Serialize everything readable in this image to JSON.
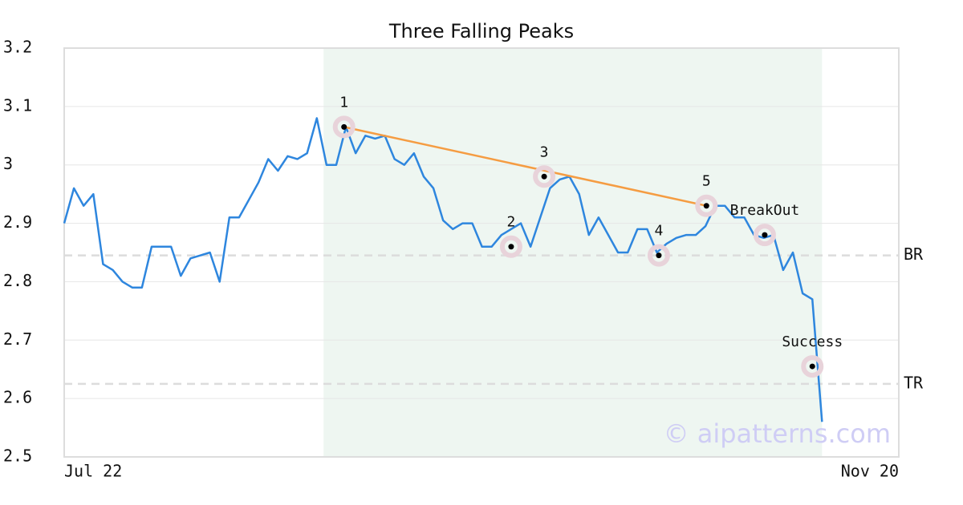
{
  "chart_data": {
    "type": "line",
    "title": "Three Falling Peaks",
    "x": [
      0,
      1,
      2,
      3,
      4,
      5,
      6,
      7,
      8,
      9,
      10,
      11,
      12,
      13,
      14,
      15,
      16,
      17,
      18,
      19,
      20,
      21,
      22,
      23,
      24,
      25,
      26,
      27,
      28,
      29,
      30,
      31,
      32,
      33,
      34,
      35,
      36,
      37,
      38,
      39,
      40,
      41,
      42,
      43,
      44,
      45,
      46,
      47,
      48,
      49,
      50,
      51,
      52,
      53,
      54,
      55,
      56,
      57,
      58,
      59,
      60,
      61,
      62,
      63,
      64,
      65,
      66,
      67,
      68,
      69,
      70,
      71,
      72,
      73,
      74,
      75,
      76,
      77,
      78
    ],
    "values": [
      2.9,
      2.96,
      2.93,
      2.95,
      2.83,
      2.82,
      2.8,
      2.79,
      2.79,
      2.86,
      2.86,
      2.86,
      2.81,
      2.84,
      2.845,
      2.85,
      2.8,
      2.91,
      2.91,
      2.94,
      2.97,
      3.01,
      2.99,
      3.015,
      3.01,
      3.02,
      3.08,
      3.0,
      3.0,
      3.065,
      3.02,
      3.05,
      3.045,
      3.05,
      3.01,
      3.0,
      3.02,
      2.98,
      2.96,
      2.905,
      2.89,
      2.9,
      2.9,
      2.86,
      2.86,
      2.88,
      2.89,
      2.9,
      2.86,
      2.91,
      2.96,
      2.975,
      2.98,
      2.95,
      2.88,
      2.91,
      2.88,
      2.85,
      2.85,
      2.89,
      2.89,
      2.85,
      2.865,
      2.875,
      2.88,
      2.88,
      2.895,
      2.93,
      2.93,
      2.91,
      2.91,
      2.88,
      2.875,
      2.88,
      2.82,
      2.85,
      2.78,
      2.77,
      2.56
    ],
    "color": "#2e86de",
    "xlim": [
      0,
      85.9
    ],
    "xticks": [
      {
        "value": 0,
        "label": "Jul 22"
      },
      {
        "value": 85.9,
        "label": "Nov 20"
      }
    ],
    "ylim": [
      2.5,
      3.2
    ],
    "yticks": [
      2.5,
      2.6,
      2.7,
      2.8,
      2.9,
      3.0,
      3.1,
      3.2
    ],
    "grid": true,
    "shade": {
      "x": [
        26.7,
        78
      ],
      "color": "#eef6f1"
    },
    "annotations": [
      {
        "label": "1",
        "x": 28.8,
        "y": 3.065
      },
      {
        "label": "2",
        "x": 46.0,
        "y": 2.86
      },
      {
        "label": "3",
        "x": 49.4,
        "y": 2.98
      },
      {
        "label": "4",
        "x": 61.2,
        "y": 2.845
      },
      {
        "label": "5",
        "x": 66.1,
        "y": 2.93
      },
      {
        "label": "BreakOut",
        "x": 72.1,
        "y": 2.88
      },
      {
        "label": "Success",
        "x": 77.0,
        "y": 2.655
      }
    ],
    "trendline": {
      "x": [
        28.8,
        66.1
      ],
      "y": [
        3.065,
        2.93
      ],
      "color": "#f59c42"
    },
    "hlines": [
      {
        "label": "BR",
        "value": 2.845
      },
      {
        "label": "TR",
        "value": 2.625
      }
    ],
    "watermark": "© aipatterns.com"
  }
}
